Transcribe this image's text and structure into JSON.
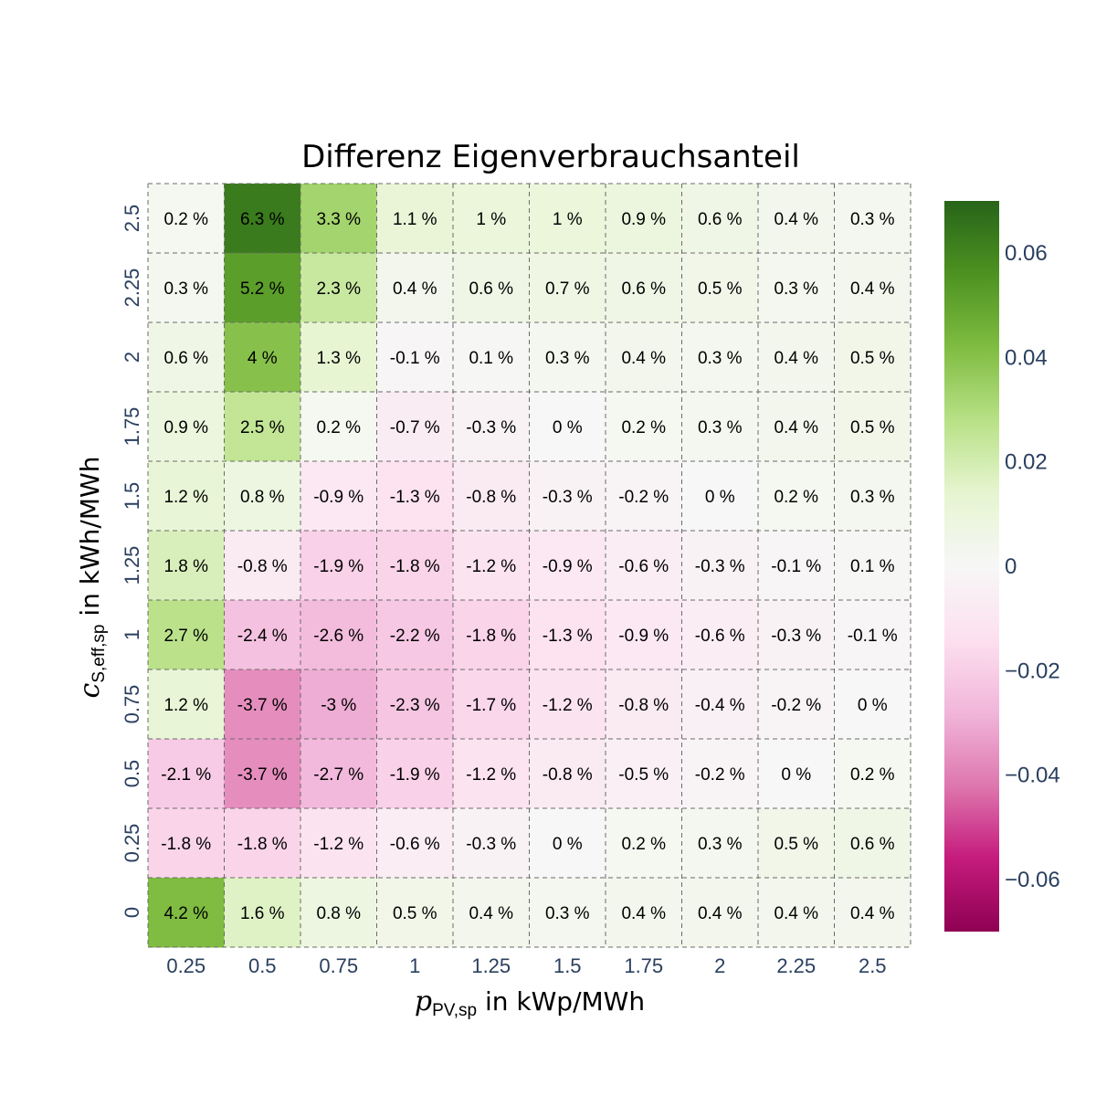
{
  "chart_data": {
    "type": "heatmap",
    "title": "Differenz Eigenverbrauchsanteil",
    "xlabel": {
      "symbol": "p",
      "subscript": "PV,sp",
      "unit": " in kWp/MWh"
    },
    "ylabel": {
      "symbol": "c",
      "subscript": "S,eff,sp",
      "unit": " in kWh/MWh"
    },
    "x": [
      "0.25",
      "0.5",
      "0.75",
      "1",
      "1.25",
      "1.5",
      "1.75",
      "2",
      "2.25",
      "2.5"
    ],
    "y": [
      "2.5",
      "2.25",
      "2",
      "1.75",
      "1.5",
      "1.25",
      "1",
      "0.75",
      "0.5",
      "0.25",
      "0"
    ],
    "values": [
      [
        0.002,
        0.063,
        0.033,
        0.011,
        0.01,
        0.01,
        0.009,
        0.006,
        0.004,
        0.003
      ],
      [
        0.003,
        0.052,
        0.023,
        0.004,
        0.006,
        0.007,
        0.006,
        0.005,
        0.003,
        0.004
      ],
      [
        0.006,
        0.04,
        0.013,
        -0.001,
        0.001,
        0.003,
        0.004,
        0.003,
        0.004,
        0.005
      ],
      [
        0.009,
        0.025,
        0.002,
        -0.007,
        -0.003,
        0.0,
        0.002,
        0.003,
        0.004,
        0.005
      ],
      [
        0.012,
        0.008,
        -0.009,
        -0.013,
        -0.008,
        -0.003,
        -0.002,
        0.0,
        0.002,
        0.003
      ],
      [
        0.018,
        -0.008,
        -0.019,
        -0.018,
        -0.012,
        -0.009,
        -0.006,
        -0.003,
        -0.001,
        0.001
      ],
      [
        0.027,
        -0.024,
        -0.026,
        -0.022,
        -0.018,
        -0.013,
        -0.009,
        -0.006,
        -0.003,
        -0.001
      ],
      [
        0.012,
        -0.037,
        -0.03,
        -0.023,
        -0.017,
        -0.012,
        -0.008,
        -0.004,
        -0.002,
        0.0
      ],
      [
        -0.021,
        -0.037,
        -0.027,
        -0.019,
        -0.012,
        -0.008,
        -0.005,
        -0.002,
        0.0,
        0.002
      ],
      [
        -0.018,
        -0.018,
        -0.012,
        -0.006,
        -0.003,
        0.0,
        0.002,
        0.003,
        0.005,
        0.006
      ],
      [
        0.042,
        0.016,
        0.008,
        0.005,
        0.004,
        0.003,
        0.004,
        0.004,
        0.004,
        0.004
      ]
    ],
    "labels": [
      [
        "0.2 %",
        "6.3 %",
        "3.3 %",
        "1.1 %",
        "1 %",
        "1 %",
        "0.9 %",
        "0.6 %",
        "0.4 %",
        "0.3 %"
      ],
      [
        "0.3 %",
        "5.2 %",
        "2.3 %",
        "0.4 %",
        "0.6 %",
        "0.7 %",
        "0.6 %",
        "0.5 %",
        "0.3 %",
        "0.4 %"
      ],
      [
        "0.6 %",
        "4 %",
        "1.3 %",
        "-0.1 %",
        "0.1 %",
        "0.3 %",
        "0.4 %",
        "0.3 %",
        "0.4 %",
        "0.5 %"
      ],
      [
        "0.9 %",
        "2.5 %",
        "0.2 %",
        "-0.7 %",
        "-0.3 %",
        "0 %",
        "0.2 %",
        "0.3 %",
        "0.4 %",
        "0.5 %"
      ],
      [
        "1.2 %",
        "0.8 %",
        "-0.9 %",
        "-1.3 %",
        "-0.8 %",
        "-0.3 %",
        "-0.2 %",
        "0 %",
        "0.2 %",
        "0.3 %"
      ],
      [
        "1.8 %",
        "-0.8 %",
        "-1.9 %",
        "-1.8 %",
        "-1.2 %",
        "-0.9 %",
        "-0.6 %",
        "-0.3 %",
        "-0.1 %",
        "0.1 %"
      ],
      [
        "2.7 %",
        "-2.4 %",
        "-2.6 %",
        "-2.2 %",
        "-1.8 %",
        "-1.3 %",
        "-0.9 %",
        "-0.6 %",
        "-0.3 %",
        "-0.1 %"
      ],
      [
        "1.2 %",
        "-3.7 %",
        "-3 %",
        "-2.3 %",
        "-1.7 %",
        "-1.2 %",
        "-0.8 %",
        "-0.4 %",
        "-0.2 %",
        "0 %"
      ],
      [
        "-2.1 %",
        "-3.7 %",
        "-2.7 %",
        "-1.9 %",
        "-1.2 %",
        "-0.8 %",
        "-0.5 %",
        "-0.2 %",
        "0 %",
        "0.2 %"
      ],
      [
        "-1.8 %",
        "-1.8 %",
        "-1.2 %",
        "-0.6 %",
        "-0.3 %",
        "0 %",
        "0.2 %",
        "0.3 %",
        "0.5 %",
        "0.6 %"
      ],
      [
        "4.2 %",
        "1.6 %",
        "0.8 %",
        "0.5 %",
        "0.4 %",
        "0.3 %",
        "0.4 %",
        "0.4 %",
        "0.4 %",
        "0.4 %"
      ]
    ],
    "colorscale": {
      "name": "PiYG",
      "range": [
        -0.07,
        0.07
      ],
      "stops": [
        "#8e0152",
        "#c51b7d",
        "#de77ae",
        "#f1b6da",
        "#fde0ef",
        "#f7f7f7",
        "#e6f5d0",
        "#b8e186",
        "#7fbc41",
        "#4d9221",
        "#276419"
      ],
      "ticks": [
        0.06,
        0.04,
        0.02,
        0,
        -0.02,
        -0.04,
        -0.06
      ],
      "tick_labels": [
        "0.06",
        "0.04",
        "0.02",
        "0",
        "−0.02",
        "−0.04",
        "−0.06"
      ]
    },
    "grid": true,
    "grid_style": "dashed"
  }
}
